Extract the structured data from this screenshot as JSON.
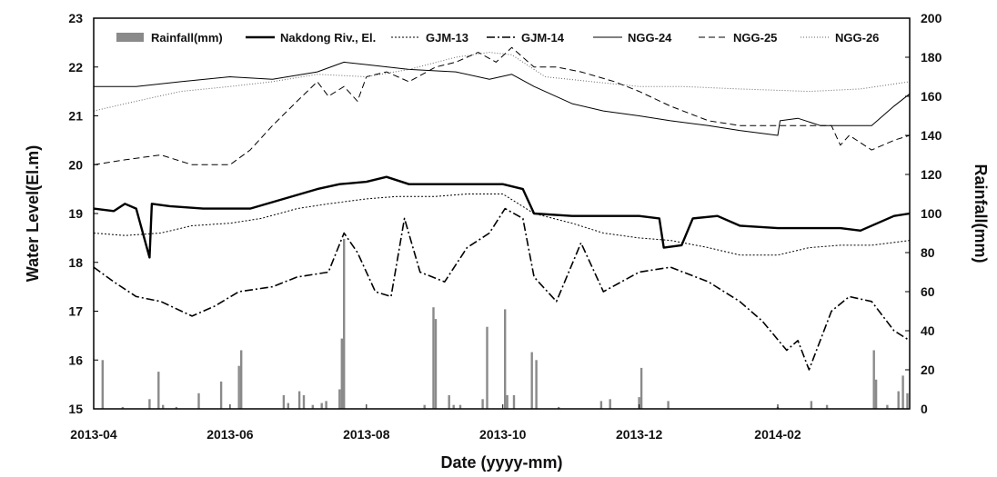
{
  "chart_data": {
    "type": "line",
    "xlabel": "Date (yyyy-mm)",
    "ylabel": "Water Level(El.m)",
    "y2label": "Rainfall(mm)",
    "x_range": [
      "2013-04-01",
      "2014-04-01"
    ],
    "x_ticks": [
      "2013-04",
      "2013-06",
      "2013-08",
      "2013-10",
      "2013-12",
      "2014-02"
    ],
    "ylim": [
      15,
      23
    ],
    "y_ticks": [
      15,
      16,
      17,
      18,
      19,
      20,
      21,
      22,
      23
    ],
    "y2lim": [
      0,
      200
    ],
    "y2_ticks": [
      0,
      20,
      40,
      60,
      80,
      100,
      120,
      140,
      160,
      180,
      200
    ],
    "grid": false,
    "legend_position": "top",
    "legend": [
      "Rainfall(mm)",
      "Nakdong Riv., El.",
      "GJM-13",
      "GJM-14",
      "NGG-24",
      "NGG-25",
      "NGG-26"
    ],
    "rainfall": [
      {
        "x": "2013-04-05",
        "y": 25
      },
      {
        "x": "2013-04-14",
        "y": 1
      },
      {
        "x": "2013-04-26",
        "y": 5
      },
      {
        "x": "2013-04-30",
        "y": 19
      },
      {
        "x": "2013-05-02",
        "y": 2
      },
      {
        "x": "2013-05-08",
        "y": 1
      },
      {
        "x": "2013-05-18",
        "y": 8
      },
      {
        "x": "2013-05-28",
        "y": 14
      },
      {
        "x": "2013-06-05",
        "y": 22
      },
      {
        "x": "2013-06-06",
        "y": 30
      },
      {
        "x": "2013-06-25",
        "y": 7
      },
      {
        "x": "2013-06-27",
        "y": 3
      },
      {
        "x": "2013-07-02",
        "y": 9
      },
      {
        "x": "2013-07-04",
        "y": 7
      },
      {
        "x": "2013-07-08",
        "y": 2
      },
      {
        "x": "2013-07-12",
        "y": 3
      },
      {
        "x": "2013-07-14",
        "y": 4
      },
      {
        "x": "2013-07-20",
        "y": 10
      },
      {
        "x": "2013-07-21",
        "y": 36
      },
      {
        "x": "2013-07-22",
        "y": 87
      },
      {
        "x": "2013-08-27",
        "y": 2
      },
      {
        "x": "2013-08-31",
        "y": 52
      },
      {
        "x": "2013-09-01",
        "y": 46
      },
      {
        "x": "2013-09-07",
        "y": 7
      },
      {
        "x": "2013-09-09",
        "y": 2
      },
      {
        "x": "2013-09-12",
        "y": 2
      },
      {
        "x": "2013-09-22",
        "y": 5
      },
      {
        "x": "2013-09-24",
        "y": 42
      },
      {
        "x": "2013-10-02",
        "y": 51
      },
      {
        "x": "2013-10-03",
        "y": 7
      },
      {
        "x": "2013-10-06",
        "y": 7
      },
      {
        "x": "2013-10-14",
        "y": 29
      },
      {
        "x": "2013-10-16",
        "y": 25
      },
      {
        "x": "2013-10-26",
        "y": 1
      },
      {
        "x": "2013-11-14",
        "y": 4
      },
      {
        "x": "2013-11-18",
        "y": 5
      },
      {
        "x": "2013-12-01",
        "y": 6
      },
      {
        "x": "2013-12-02",
        "y": 21
      },
      {
        "x": "2013-12-14",
        "y": 4
      },
      {
        "x": "2014-02-01",
        "y": 1
      },
      {
        "x": "2014-02-16",
        "y": 4
      },
      {
        "x": "2014-02-23",
        "y": 2
      },
      {
        "x": "2014-03-16",
        "y": 30
      },
      {
        "x": "2014-03-17",
        "y": 15
      },
      {
        "x": "2014-03-22",
        "y": 2
      },
      {
        "x": "2014-03-27",
        "y": 9
      },
      {
        "x": "2014-03-29",
        "y": 17
      },
      {
        "x": "2014-03-31",
        "y": 8
      }
    ],
    "series": [
      {
        "name": "Nakdong Riv., El.",
        "points": [
          [
            "2013-04-01",
            19.1
          ],
          [
            "2013-04-10",
            19.05
          ],
          [
            "2013-04-15",
            19.2
          ],
          [
            "2013-04-20",
            19.1
          ],
          [
            "2013-04-26",
            18.1
          ],
          [
            "2013-04-27",
            19.2
          ],
          [
            "2013-05-05",
            19.15
          ],
          [
            "2013-05-20",
            19.1
          ],
          [
            "2013-06-10",
            19.1
          ],
          [
            "2013-06-25",
            19.3
          ],
          [
            "2013-07-10",
            19.5
          ],
          [
            "2013-07-20",
            19.6
          ],
          [
            "2013-08-01",
            19.65
          ],
          [
            "2013-08-10",
            19.75
          ],
          [
            "2013-08-20",
            19.6
          ],
          [
            "2013-09-01",
            19.6
          ],
          [
            "2013-09-15",
            19.6
          ],
          [
            "2013-10-01",
            19.6
          ],
          [
            "2013-10-10",
            19.5
          ],
          [
            "2013-10-15",
            19.0
          ],
          [
            "2013-11-01",
            18.95
          ],
          [
            "2013-11-15",
            18.95
          ],
          [
            "2013-12-01",
            18.95
          ],
          [
            "2013-12-10",
            18.9
          ],
          [
            "2013-12-12",
            18.3
          ],
          [
            "2013-12-20",
            18.35
          ],
          [
            "2013-12-25",
            18.9
          ],
          [
            "2014-01-05",
            18.95
          ],
          [
            "2014-01-15",
            18.75
          ],
          [
            "2014-02-01",
            18.7
          ],
          [
            "2014-02-15",
            18.7
          ],
          [
            "2014-03-01",
            18.7
          ],
          [
            "2014-03-10",
            18.65
          ],
          [
            "2014-03-25",
            18.95
          ],
          [
            "2014-04-01",
            19.0
          ]
        ]
      },
      {
        "name": "GJM-13",
        "points": [
          [
            "2013-04-01",
            18.6
          ],
          [
            "2013-04-15",
            18.55
          ],
          [
            "2013-05-01",
            18.6
          ],
          [
            "2013-05-15",
            18.75
          ],
          [
            "2013-06-01",
            18.8
          ],
          [
            "2013-06-15",
            18.9
          ],
          [
            "2013-07-01",
            19.1
          ],
          [
            "2013-07-15",
            19.2
          ],
          [
            "2013-08-01",
            19.3
          ],
          [
            "2013-08-15",
            19.35
          ],
          [
            "2013-09-01",
            19.35
          ],
          [
            "2013-09-15",
            19.4
          ],
          [
            "2013-10-01",
            19.4
          ],
          [
            "2013-10-15",
            19.0
          ],
          [
            "2013-11-01",
            18.8
          ],
          [
            "2013-11-15",
            18.6
          ],
          [
            "2013-12-01",
            18.5
          ],
          [
            "2013-12-15",
            18.45
          ],
          [
            "2014-01-01",
            18.3
          ],
          [
            "2014-01-15",
            18.15
          ],
          [
            "2014-02-01",
            18.15
          ],
          [
            "2014-02-15",
            18.3
          ],
          [
            "2014-03-01",
            18.35
          ],
          [
            "2014-03-15",
            18.35
          ],
          [
            "2014-04-01",
            18.45
          ]
        ]
      },
      {
        "name": "GJM-14",
        "points": [
          [
            "2013-04-01",
            17.9
          ],
          [
            "2013-04-10",
            17.6
          ],
          [
            "2013-04-20",
            17.3
          ],
          [
            "2013-05-01",
            17.2
          ],
          [
            "2013-05-15",
            16.9
          ],
          [
            "2013-05-25",
            17.1
          ],
          [
            "2013-06-05",
            17.4
          ],
          [
            "2013-06-20",
            17.5
          ],
          [
            "2013-07-01",
            17.7
          ],
          [
            "2013-07-15",
            17.8
          ],
          [
            "2013-07-22",
            18.6
          ],
          [
            "2013-07-28",
            18.2
          ],
          [
            "2013-08-05",
            17.4
          ],
          [
            "2013-08-12",
            17.3
          ],
          [
            "2013-08-18",
            18.9
          ],
          [
            "2013-08-25",
            17.8
          ],
          [
            "2013-09-05",
            17.6
          ],
          [
            "2013-09-15",
            18.3
          ],
          [
            "2013-09-25",
            18.6
          ],
          [
            "2013-10-02",
            19.1
          ],
          [
            "2013-10-10",
            18.9
          ],
          [
            "2013-10-15",
            17.7
          ],
          [
            "2013-10-25",
            17.2
          ],
          [
            "2013-11-05",
            18.4
          ],
          [
            "2013-11-15",
            17.4
          ],
          [
            "2013-12-01",
            17.8
          ],
          [
            "2013-12-15",
            17.9
          ],
          [
            "2014-01-01",
            17.6
          ],
          [
            "2014-01-15",
            17.2
          ],
          [
            "2014-01-25",
            16.8
          ],
          [
            "2014-02-05",
            16.2
          ],
          [
            "2014-02-10",
            16.4
          ],
          [
            "2014-02-15",
            15.8
          ],
          [
            "2014-02-25",
            17.0
          ],
          [
            "2014-03-05",
            17.3
          ],
          [
            "2014-03-15",
            17.2
          ],
          [
            "2014-03-25",
            16.6
          ],
          [
            "2014-04-01",
            16.4
          ]
        ]
      },
      {
        "name": "NGG-24",
        "points": [
          [
            "2013-04-01",
            21.6
          ],
          [
            "2013-04-20",
            21.6
          ],
          [
            "2013-05-10",
            21.7
          ],
          [
            "2013-06-01",
            21.8
          ],
          [
            "2013-06-20",
            21.75
          ],
          [
            "2013-07-10",
            21.9
          ],
          [
            "2013-07-22",
            22.1
          ],
          [
            "2013-08-01",
            22.05
          ],
          [
            "2013-08-20",
            21.95
          ],
          [
            "2013-09-10",
            21.9
          ],
          [
            "2013-09-25",
            21.75
          ],
          [
            "2013-10-05",
            21.85
          ],
          [
            "2013-10-15",
            21.6
          ],
          [
            "2013-11-01",
            21.25
          ],
          [
            "2013-11-15",
            21.1
          ],
          [
            "2013-12-01",
            21.0
          ],
          [
            "2013-12-15",
            20.9
          ],
          [
            "2014-01-01",
            20.8
          ],
          [
            "2014-01-15",
            20.7
          ],
          [
            "2014-02-01",
            20.6
          ],
          [
            "2014-02-02",
            20.9
          ],
          [
            "2014-02-10",
            20.95
          ],
          [
            "2014-02-20",
            20.8
          ],
          [
            "2014-03-01",
            20.8
          ],
          [
            "2014-03-15",
            20.8
          ],
          [
            "2014-03-25",
            21.2
          ],
          [
            "2014-04-01",
            21.45
          ]
        ]
      },
      {
        "name": "NGG-25",
        "points": [
          [
            "2013-04-01",
            20.0
          ],
          [
            "2013-04-15",
            20.1
          ],
          [
            "2013-05-01",
            20.2
          ],
          [
            "2013-05-15",
            20.0
          ],
          [
            "2013-06-01",
            20.0
          ],
          [
            "2013-06-10",
            20.3
          ],
          [
            "2013-06-20",
            20.8
          ],
          [
            "2013-07-01",
            21.3
          ],
          [
            "2013-07-10",
            21.7
          ],
          [
            "2013-07-15",
            21.4
          ],
          [
            "2013-07-22",
            21.6
          ],
          [
            "2013-07-28",
            21.3
          ],
          [
            "2013-08-01",
            21.8
          ],
          [
            "2013-08-10",
            21.9
          ],
          [
            "2013-08-20",
            21.7
          ],
          [
            "2013-09-01",
            22.0
          ],
          [
            "2013-09-10",
            22.1
          ],
          [
            "2013-09-20",
            22.3
          ],
          [
            "2013-09-28",
            22.1
          ],
          [
            "2013-10-05",
            22.4
          ],
          [
            "2013-10-15",
            22.0
          ],
          [
            "2013-10-25",
            22.0
          ],
          [
            "2013-11-05",
            21.9
          ],
          [
            "2013-11-20",
            21.7
          ],
          [
            "2013-12-01",
            21.5
          ],
          [
            "2013-12-15",
            21.2
          ],
          [
            "2014-01-01",
            20.9
          ],
          [
            "2014-01-15",
            20.8
          ],
          [
            "2014-02-01",
            20.8
          ],
          [
            "2014-02-15",
            20.8
          ],
          [
            "2014-02-25",
            20.8
          ],
          [
            "2014-03-01",
            20.4
          ],
          [
            "2014-03-05",
            20.6
          ],
          [
            "2014-03-15",
            20.3
          ],
          [
            "2014-03-25",
            20.5
          ],
          [
            "2014-04-01",
            20.6
          ]
        ]
      },
      {
        "name": "NGG-26",
        "points": [
          [
            "2013-04-01",
            21.1
          ],
          [
            "2013-04-20",
            21.3
          ],
          [
            "2013-05-10",
            21.5
          ],
          [
            "2013-06-01",
            21.6
          ],
          [
            "2013-06-20",
            21.7
          ],
          [
            "2013-07-10",
            21.85
          ],
          [
            "2013-08-01",
            21.8
          ],
          [
            "2013-08-20",
            21.95
          ],
          [
            "2013-09-10",
            22.2
          ],
          [
            "2013-09-25",
            22.3
          ],
          [
            "2013-10-05",
            22.25
          ],
          [
            "2013-10-20",
            21.8
          ],
          [
            "2013-11-10",
            21.7
          ],
          [
            "2013-12-01",
            21.6
          ],
          [
            "2013-12-20",
            21.6
          ],
          [
            "2014-01-15",
            21.55
          ],
          [
            "2014-02-15",
            21.5
          ],
          [
            "2014-03-10",
            21.55
          ],
          [
            "2014-04-01",
            21.7
          ]
        ]
      }
    ]
  }
}
